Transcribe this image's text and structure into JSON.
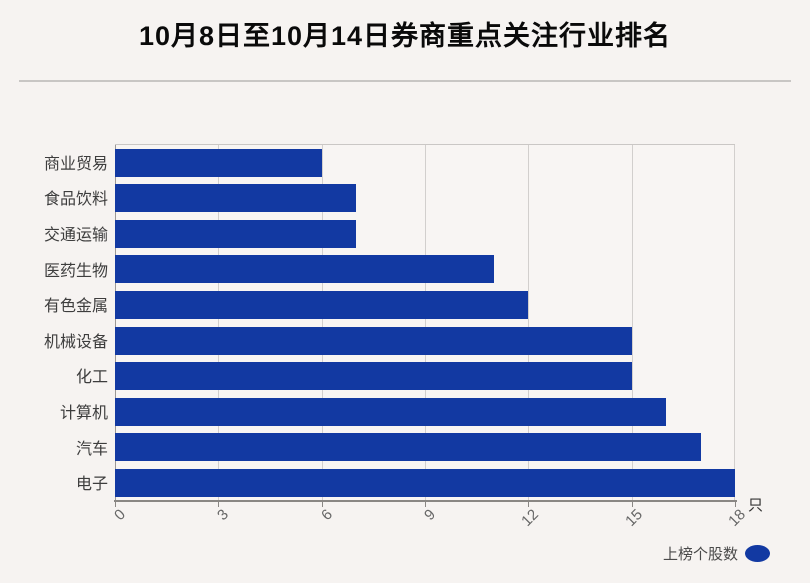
{
  "title": "10月8日至10月14日券商重点关注行业排名",
  "unit_label": "只",
  "legend": {
    "label": "上榜个股数"
  },
  "colors": {
    "bar": "#1239a2",
    "background": "#f6f3f1",
    "plot_background": "#f8f5f3",
    "grid": "#d2cfcd",
    "axis": "#8a8784",
    "title_text": "#0a0a0a",
    "category_text": "#3d3d3d",
    "tick_text": "#666666",
    "legend_text": "#4a4a4a"
  },
  "chart_data": {
    "type": "bar",
    "orientation": "horizontal",
    "title": "10月8日至10月14日券商重点关注行业排名",
    "series_name": "上榜个股数",
    "categories": [
      "商业贸易",
      "食品饮料",
      "交通运输",
      "医药生物",
      "有色金属",
      "机械设备",
      "化工",
      "计算机",
      "汽车",
      "电子"
    ],
    "values": [
      6,
      7,
      7,
      11,
      12,
      15,
      15,
      16,
      17,
      18
    ],
    "xlabel": "只",
    "ylabel": "",
    "xlim": [
      0,
      18
    ],
    "xticks": [
      0,
      3,
      6,
      9,
      12,
      15,
      18
    ],
    "grid": true,
    "legend_position": "bottom-right"
  }
}
